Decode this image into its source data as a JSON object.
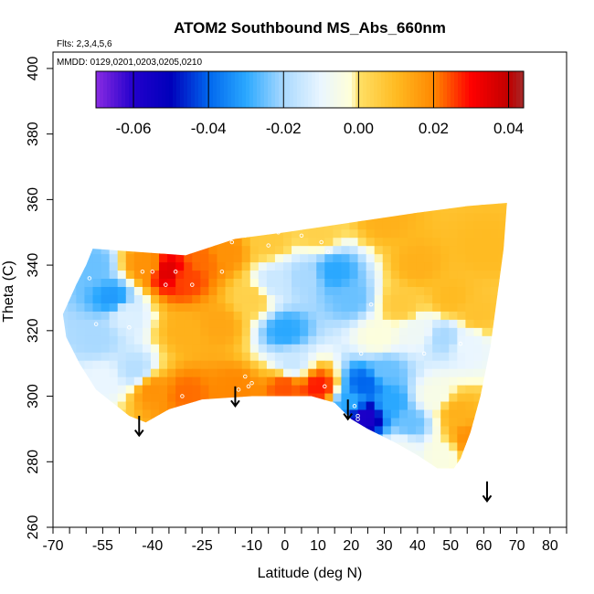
{
  "chart_data": {
    "type": "heatmap",
    "title": "ATOM2 Southbound MS_Abs_660nm",
    "subtitle_flights": "Flts: 2,3,4,5,6",
    "subtitle_dates": "MMDD: 0129,0201,0203,0205,0210",
    "xlabel": "Latitude (deg N)",
    "ylabel": "Theta (C)",
    "xlim": [
      -70,
      85
    ],
    "ylim": [
      260,
      405
    ],
    "x_ticks": [
      -70,
      -55,
      -40,
      -25,
      -10,
      0,
      10,
      20,
      30,
      40,
      50,
      60,
      70,
      80
    ],
    "x_minor_ticks": [
      -65,
      -60,
      -50,
      -45,
      -35,
      -30,
      -20,
      -15,
      -5,
      5,
      15,
      25,
      35,
      45,
      55,
      65,
      75,
      85
    ],
    "y_ticks": [
      260,
      280,
      300,
      320,
      340,
      360,
      380,
      400
    ],
    "colorbar": {
      "range": [
        -0.07,
        0.044
      ],
      "ticks": [
        -0.06,
        -0.04,
        -0.02,
        0.0,
        0.02,
        0.04
      ],
      "tick_labels": [
        "-0.06",
        "-0.04",
        "-0.02",
        "0.00",
        "0.02",
        "0.04"
      ],
      "color_stops": [
        {
          "v": -0.07,
          "c": "#8a2be2"
        },
        {
          "v": -0.06,
          "c": "#2200cc"
        },
        {
          "v": -0.05,
          "c": "#0000bb"
        },
        {
          "v": -0.04,
          "c": "#0066ee"
        },
        {
          "v": -0.03,
          "c": "#2aa8ff"
        },
        {
          "v": -0.02,
          "c": "#a9d9ff"
        },
        {
          "v": -0.01,
          "c": "#eaf6ff"
        },
        {
          "v": -0.002,
          "c": "#ffffd8"
        },
        {
          "v": 0.0,
          "c": "#ffe066"
        },
        {
          "v": 0.01,
          "c": "#ffbb22"
        },
        {
          "v": 0.02,
          "c": "#ff8800"
        },
        {
          "v": 0.03,
          "c": "#ff0000"
        },
        {
          "v": 0.04,
          "c": "#c00000"
        },
        {
          "v": 0.044,
          "c": "#a52a2a"
        }
      ]
    },
    "field_outline": [
      [
        -58,
        345
      ],
      [
        -30,
        343
      ],
      [
        -15,
        348
      ],
      [
        0,
        350
      ],
      [
        20,
        353
      ],
      [
        40,
        356
      ],
      [
        55,
        358
      ],
      [
        67,
        359
      ],
      [
        66,
        345
      ],
      [
        64,
        330
      ],
      [
        62,
        315
      ],
      [
        59,
        300
      ],
      [
        56,
        289
      ],
      [
        53,
        281
      ],
      [
        51,
        278
      ],
      [
        46,
        278
      ],
      [
        40,
        282
      ],
      [
        33,
        286
      ],
      [
        25,
        290
      ],
      [
        20,
        293
      ],
      [
        15,
        298
      ],
      [
        8,
        300
      ],
      [
        -10,
        300
      ],
      [
        -25,
        299
      ],
      [
        -35,
        296
      ],
      [
        -42,
        292
      ],
      [
        -47,
        294
      ],
      [
        -52,
        298
      ],
      [
        -57,
        302
      ],
      [
        -62,
        310
      ],
      [
        -66,
        318
      ],
      [
        -67,
        325
      ],
      [
        -63,
        334
      ],
      [
        -60,
        340
      ]
    ],
    "field_samples": [
      {
        "x": -58,
        "y": 340,
        "v": -0.025
      },
      {
        "x": -52,
        "y": 330,
        "v": -0.032
      },
      {
        "x": -57,
        "y": 318,
        "v": -0.02
      },
      {
        "x": -48,
        "y": 325,
        "v": -0.012
      },
      {
        "x": -55,
        "y": 305,
        "v": -0.01
      },
      {
        "x": -45,
        "y": 308,
        "v": -0.018
      },
      {
        "x": -42,
        "y": 340,
        "v": 0.018
      },
      {
        "x": -35,
        "y": 338,
        "v": 0.035
      },
      {
        "x": -30,
        "y": 336,
        "v": 0.025
      },
      {
        "x": -25,
        "y": 342,
        "v": 0.022
      },
      {
        "x": -18,
        "y": 344,
        "v": 0.018
      },
      {
        "x": -30,
        "y": 320,
        "v": 0.012
      },
      {
        "x": -20,
        "y": 322,
        "v": 0.014
      },
      {
        "x": -40,
        "y": 302,
        "v": 0.018
      },
      {
        "x": -30,
        "y": 301,
        "v": 0.022
      },
      {
        "x": -15,
        "y": 302,
        "v": 0.02
      },
      {
        "x": 0,
        "y": 303,
        "v": 0.024
      },
      {
        "x": 10,
        "y": 303,
        "v": 0.028
      },
      {
        "x": -10,
        "y": 330,
        "v": 0.004
      },
      {
        "x": -3,
        "y": 335,
        "v": -0.015
      },
      {
        "x": 0,
        "y": 320,
        "v": -0.03
      },
      {
        "x": 2,
        "y": 310,
        "v": -0.015
      },
      {
        "x": 6,
        "y": 336,
        "v": -0.02
      },
      {
        "x": 15,
        "y": 338,
        "v": -0.03
      },
      {
        "x": 20,
        "y": 330,
        "v": -0.025
      },
      {
        "x": -5,
        "y": 348,
        "v": 0.006
      },
      {
        "x": 10,
        "y": 350,
        "v": 0.004
      },
      {
        "x": 30,
        "y": 354,
        "v": 0.012
      },
      {
        "x": 40,
        "y": 340,
        "v": 0.012
      },
      {
        "x": 35,
        "y": 328,
        "v": 0.006
      },
      {
        "x": 50,
        "y": 330,
        "v": 0.01
      },
      {
        "x": 60,
        "y": 345,
        "v": 0.01
      },
      {
        "x": 58,
        "y": 325,
        "v": 0.008
      },
      {
        "x": 28,
        "y": 318,
        "v": -0.003
      },
      {
        "x": 40,
        "y": 320,
        "v": -0.008
      },
      {
        "x": 48,
        "y": 318,
        "v": -0.02
      },
      {
        "x": 55,
        "y": 316,
        "v": -0.01
      },
      {
        "x": 30,
        "y": 308,
        "v": -0.025
      },
      {
        "x": 24,
        "y": 304,
        "v": -0.04
      },
      {
        "x": 24,
        "y": 294,
        "v": -0.058
      },
      {
        "x": 20,
        "y": 298,
        "v": -0.03
      },
      {
        "x": 32,
        "y": 298,
        "v": -0.03
      },
      {
        "x": 38,
        "y": 292,
        "v": -0.025
      },
      {
        "x": 45,
        "y": 300,
        "v": -0.005
      },
      {
        "x": 52,
        "y": 295,
        "v": 0.012
      },
      {
        "x": 55,
        "y": 287,
        "v": 0.018
      },
      {
        "x": 48,
        "y": 283,
        "v": -0.004
      },
      {
        "x": 35,
        "y": 284,
        "v": -0.008
      }
    ],
    "sample_points": [
      [
        -59,
        336
      ],
      [
        -57,
        322
      ],
      [
        -47,
        321
      ],
      [
        -43,
        338
      ],
      [
        -40,
        338
      ],
      [
        -36,
        334
      ],
      [
        -33,
        338
      ],
      [
        -28,
        334
      ],
      [
        -19,
        338
      ],
      [
        -16,
        347
      ],
      [
        -12,
        349
      ],
      [
        -8,
        350
      ],
      [
        -5,
        346
      ],
      [
        -2,
        350
      ],
      [
        5,
        349
      ],
      [
        11,
        347
      ],
      [
        13,
        344
      ],
      [
        -14,
        302
      ],
      [
        -12,
        306
      ],
      [
        -11,
        303
      ],
      [
        -10,
        304
      ],
      [
        -31,
        300
      ],
      [
        12,
        303
      ],
      [
        21,
        297
      ],
      [
        22,
        294
      ],
      [
        22,
        293
      ],
      [
        23,
        313
      ],
      [
        26,
        328
      ],
      [
        42,
        313
      ],
      [
        53,
        316
      ],
      [
        56,
        287
      ]
    ],
    "arrows": [
      {
        "x": -44,
        "y_top": 294,
        "y_bottom": 288
      },
      {
        "x": -15,
        "y_top": 303,
        "y_bottom": 297
      },
      {
        "x": 19,
        "y_top": 299,
        "y_bottom": 293
      },
      {
        "x": 61,
        "y_top": 274,
        "y_bottom": 268
      }
    ],
    "grid": false,
    "legend": "top colorbar inside plot"
  }
}
